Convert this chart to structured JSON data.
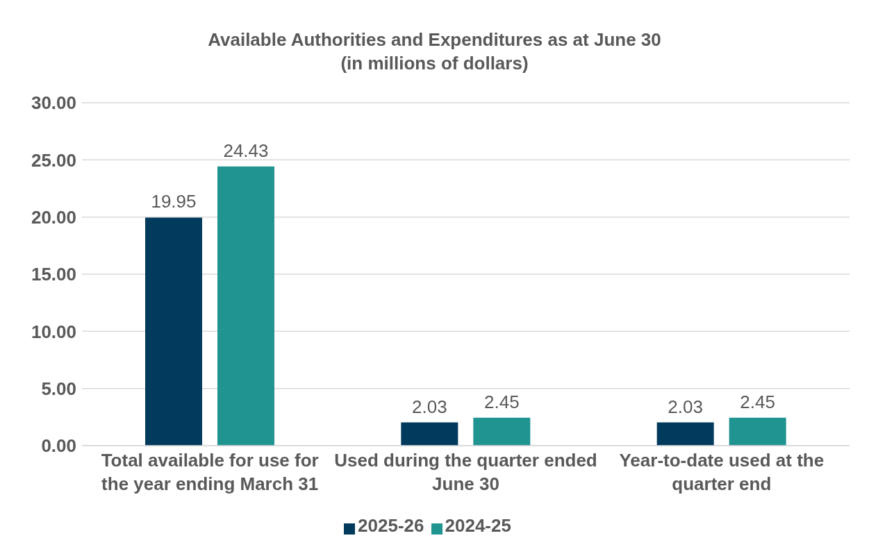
{
  "chart_data": {
    "type": "bar",
    "title": "Available Authorities and Expenditures as at June 30",
    "subtitle": "(in millions of dollars)",
    "categories": [
      "Total available for use for the year ending March 31",
      "Used during the quarter ended June 30",
      "Year-to-date used at the quarter end"
    ],
    "series": [
      {
        "name": "2025-26",
        "color": "#003a5d",
        "values": [
          19.95,
          2.03,
          2.03
        ]
      },
      {
        "name": "2024-25",
        "color": "#1f9490",
        "values": [
          24.43,
          2.45,
          2.45
        ]
      }
    ],
    "ylim": [
      0,
      30
    ],
    "yticks": [
      {
        "value": 0,
        "label": "0.00"
      },
      {
        "value": 5,
        "label": "5.00"
      },
      {
        "value": 10,
        "label": "10.00"
      },
      {
        "value": 15,
        "label": "15.00"
      },
      {
        "value": 20,
        "label": "20.00"
      },
      {
        "value": 25,
        "label": "25.00"
      },
      {
        "value": 30,
        "label": "30.00"
      }
    ],
    "grid": "y",
    "legend": "bottom",
    "data_labels": true
  }
}
